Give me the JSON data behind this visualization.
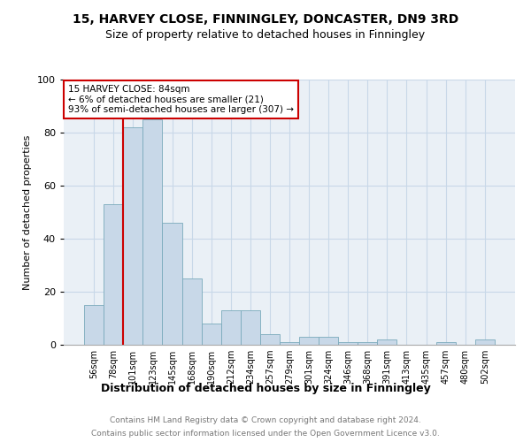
{
  "title": "15, HARVEY CLOSE, FINNINGLEY, DONCASTER, DN9 3RD",
  "subtitle": "Size of property relative to detached houses in Finningley",
  "xlabel": "Distribution of detached houses by size in Finningley",
  "ylabel": "Number of detached properties",
  "categories": [
    "56sqm",
    "78sqm",
    "101sqm",
    "123sqm",
    "145sqm",
    "168sqm",
    "190sqm",
    "212sqm",
    "234sqm",
    "257sqm",
    "279sqm",
    "301sqm",
    "324sqm",
    "346sqm",
    "368sqm",
    "391sqm",
    "413sqm",
    "435sqm",
    "457sqm",
    "480sqm",
    "502sqm"
  ],
  "values": [
    15,
    53,
    82,
    85,
    46,
    25,
    8,
    13,
    13,
    4,
    1,
    3,
    3,
    1,
    1,
    2,
    0,
    0,
    1,
    0,
    2
  ],
  "bar_color": "#c8d8e8",
  "bar_edge_color": "#7aaabb",
  "property_sqm": 84,
  "annotation_line1": "15 HARVEY CLOSE: 84sqm",
  "annotation_line2": "← 6% of detached houses are smaller (21)",
  "annotation_line3": "93% of semi-detached houses are larger (307) →",
  "annotation_box_color": "#ffffff",
  "annotation_border_color": "#cc0000",
  "property_line_color": "#cc0000",
  "grid_color": "#c8d8e8",
  "background_color": "#eaf0f6",
  "ylim": [
    0,
    100
  ],
  "yticks": [
    0,
    20,
    40,
    60,
    80,
    100
  ],
  "footer_line1": "Contains HM Land Registry data © Crown copyright and database right 2024.",
  "footer_line2": "Contains public sector information licensed under the Open Government Licence v3.0.",
  "title_fontsize": 10,
  "subtitle_fontsize": 9,
  "xlabel_fontsize": 9,
  "ylabel_fontsize": 8,
  "tick_fontsize": 7,
  "footer_fontsize": 6.5
}
